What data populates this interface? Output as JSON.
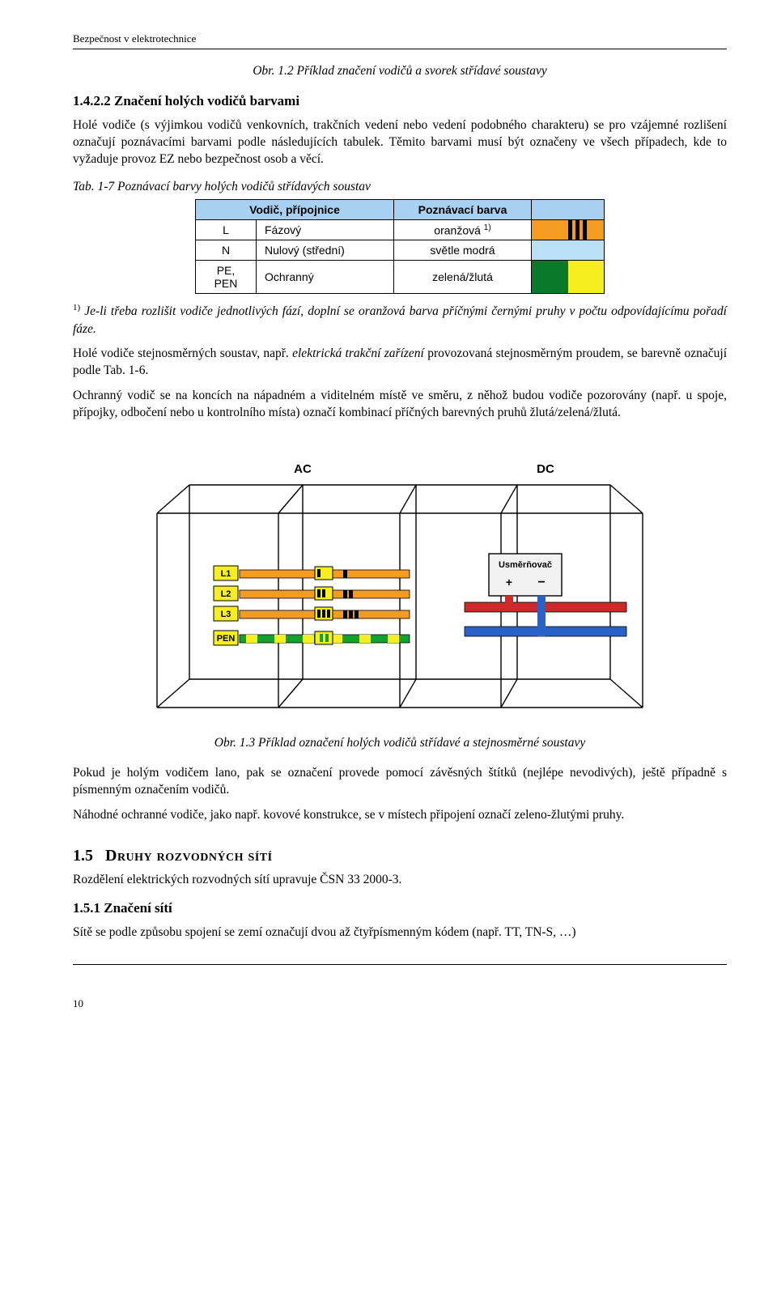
{
  "header": {
    "running_title": "Bezpečnost v elektrotechnice"
  },
  "fig12": {
    "caption": "Obr. 1.2  Příklad značení vodičů a svorek střídavé soustavy"
  },
  "sec1422": {
    "heading": "1.4.2.2   Značení holých vodičů barvami",
    "p1": "Holé vodiče (s výjimkou vodičů venkovních, trakčních vedení nebo vedení podobného charakteru) se pro vzájemné rozlišení označují poznávacími barvami podle následujících tabulek. Těmito barvami musí být označeny ve všech případech, kde to vyžaduje provoz EZ nebo bezpečnost osob a věcí."
  },
  "tab17": {
    "caption": "Tab. 1-7   Poznávací barvy holých vodičů střídavých soustav",
    "head_left": "Vodič, přípojnice",
    "head_right": "Poznávací barva",
    "header_bg": "#a8d0f0",
    "rows": [
      {
        "sym": "L",
        "name": "Fázový",
        "color_label": "oranžová ",
        "sup": "1)",
        "swatch": {
          "base": "#f59b22",
          "stripes": [
            "#000000",
            "#000000",
            "#000000"
          ]
        }
      },
      {
        "sym": "N",
        "name": "Nulový (střední)",
        "color_label": "světle modrá",
        "swatch": {
          "base": "#b9e0f5"
        }
      },
      {
        "sym": "PE, PEN",
        "name": "Ochranný",
        "color_label": "zelená/žlutá",
        "swatch": {
          "halves": [
            "#0a7a2a",
            "#f7ef1f"
          ]
        }
      }
    ],
    "footnote_mark": "1)",
    "footnote": " Je-li třeba rozlišit vodiče jednotlivých fází, doplní se oranžová barva příčnými černými pruhy v počtu odpovídajícímu pořadí fáze."
  },
  "para_after_table": {
    "p1a": "Holé vodiče stejnosměrných soustav, např. ",
    "p1b_italic": "elektrická trakční zařízení",
    "p1c": " provozovaná stejnosměrným proudem, se barevně označují podle Tab. 1-6.",
    "p2": "Ochranný vodič se na koncích na nápadném a viditelném místě ve směru, z něhož budou vodiče pozorovány (např. u spoje, přípojky, odbočení nebo u kontrolního místa) označí kombinací příčných barevných pruhů žlutá/zelená/žlutá."
  },
  "fig13": {
    "caption": "Obr. 1.3  Příklad označení holých vodičů střídavé a stejnosměrné soustavy",
    "labels": {
      "ac": "AC",
      "dc": "DC",
      "l1": "L1",
      "l2": "L2",
      "l3": "L3",
      "pen": "PEN",
      "rect": "Usměrňovač",
      "plus": "+",
      "minus": "−"
    },
    "colors": {
      "line": "#000000",
      "phase": "#f59b22",
      "phase_mark": "#000000",
      "pen_g": "#12a22f",
      "pen_y": "#f7ef1f",
      "dc_pos": "#cc2a2a",
      "dc_neg": "#2a62c8",
      "rect_fill": "#f2f2f2",
      "shadow": "#cfcfcf"
    }
  },
  "after_fig13": {
    "p1": "Pokud je holým vodičem lano, pak se označení provede pomocí závěsných štítků (nejlépe nevodivých), ještě případně s písmenným označením vodičů.",
    "p2": "Náhodné ochranné vodiče, jako např. kovové konstrukce, se v místech připojení označí zeleno-žlutými pruhy."
  },
  "sec15": {
    "num": "1.5",
    "title": "Druhy rozvodných sítí",
    "p1": "Rozdělení elektrických rozvodných sítí upravuje ČSN 33 2000-3."
  },
  "sec151": {
    "heading": "1.5.1   Značení sítí",
    "p1": "Sítě se podle způsobu spojení se zemí označují dvou až čtyřpísmenným kódem (např. TT, TN-S, …)"
  },
  "page_number": "10"
}
